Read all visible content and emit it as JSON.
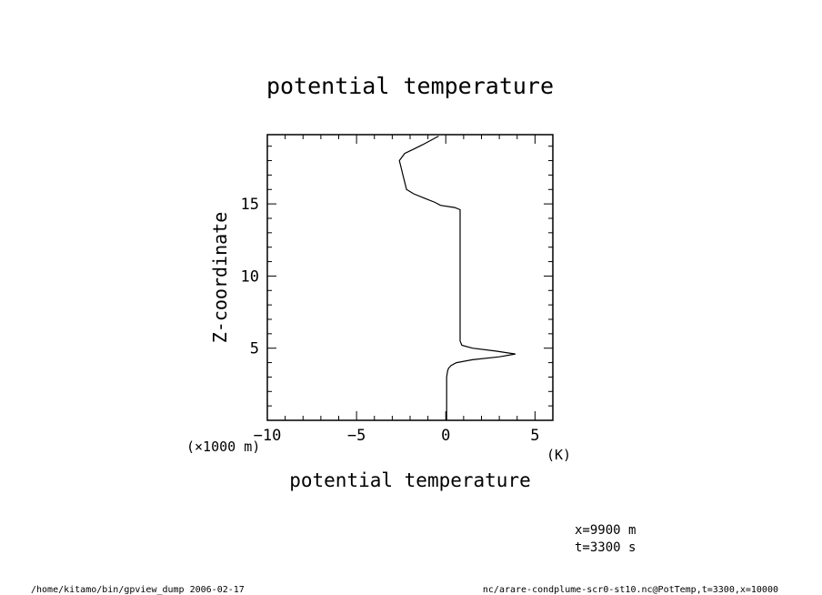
{
  "chart_data": {
    "type": "line",
    "title": "potential temperature",
    "xlabel": "potential temperature",
    "x_units": "(K)",
    "ylabel": "Z-coordinate",
    "y_units": "(×1000 m)",
    "xlim": [
      -10,
      6
    ],
    "ylim": [
      0,
      19.8
    ],
    "x_ticks": [
      -10,
      -5,
      0,
      5
    ],
    "y_ticks": [
      5,
      10,
      15
    ],
    "x_tick_labels": [
      "−10",
      "−5",
      "0",
      "5"
    ],
    "y_tick_labels": [
      "5",
      "10",
      "15"
    ],
    "grid": false,
    "series": [
      {
        "values_xy": [
          [
            0.05,
            0.0
          ],
          [
            0.05,
            0.5
          ],
          [
            0.05,
            1.0
          ],
          [
            0.05,
            1.5
          ],
          [
            0.05,
            2.0
          ],
          [
            0.05,
            2.5
          ],
          [
            0.05,
            3.0
          ],
          [
            0.1,
            3.4
          ],
          [
            0.15,
            3.6
          ],
          [
            0.3,
            3.8
          ],
          [
            0.6,
            4.0
          ],
          [
            1.5,
            4.2
          ],
          [
            3.0,
            4.4
          ],
          [
            3.9,
            4.6
          ],
          [
            2.8,
            4.8
          ],
          [
            1.5,
            5.0
          ],
          [
            0.9,
            5.2
          ],
          [
            0.8,
            5.5
          ],
          [
            0.8,
            6.0
          ],
          [
            0.8,
            7.0
          ],
          [
            0.8,
            8.0
          ],
          [
            0.8,
            9.0
          ],
          [
            0.8,
            10.0
          ],
          [
            0.8,
            11.0
          ],
          [
            0.8,
            12.0
          ],
          [
            0.8,
            13.0
          ],
          [
            0.8,
            14.0
          ],
          [
            0.8,
            14.6
          ],
          [
            0.5,
            14.75
          ],
          [
            -0.3,
            14.9
          ],
          [
            -0.6,
            15.1
          ],
          [
            -1.2,
            15.4
          ],
          [
            -1.8,
            15.7
          ],
          [
            -2.2,
            16.0
          ],
          [
            -2.3,
            16.5
          ],
          [
            -2.4,
            17.0
          ],
          [
            -2.5,
            17.5
          ],
          [
            -2.6,
            18.0
          ],
          [
            -2.3,
            18.5
          ],
          [
            -1.8,
            18.8
          ],
          [
            -1.3,
            19.1
          ],
          [
            -0.4,
            19.7
          ]
        ]
      }
    ]
  },
  "footer": {
    "info_x": "x=9900  m",
    "info_t": "t=3300  s",
    "left_path": "/home/kitamo/bin/gpview_dump  2006-02-17",
    "right_source": "nc/arare-condplume-scr0-st10.nc@PotTemp,t=3300,x=10000"
  }
}
